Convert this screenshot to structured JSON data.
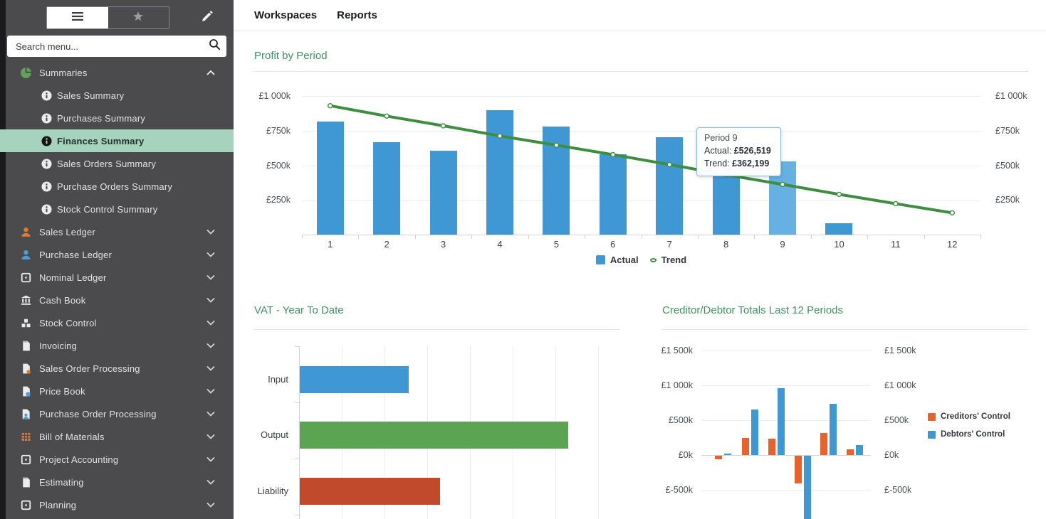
{
  "sidebar": {
    "search_placeholder": "Search menu...",
    "toggle": {
      "active": "menu",
      "icons": [
        "hamburger-icon",
        "star-icon"
      ]
    },
    "items": [
      {
        "label": "Summaries",
        "icon": "pie",
        "expanded": true,
        "children": [
          {
            "label": "Sales Summary"
          },
          {
            "label": "Purchases Summary"
          },
          {
            "label": "Finances Summary",
            "selected": true
          },
          {
            "label": "Sales Orders Summary"
          },
          {
            "label": "Purchase Orders Summary"
          },
          {
            "label": "Stock Control Summary"
          }
        ]
      },
      {
        "label": "Sales Ledger",
        "icon": "person-orange"
      },
      {
        "label": "Purchase Ledger",
        "icon": "person-blue"
      },
      {
        "label": "Nominal Ledger",
        "icon": "square-dot"
      },
      {
        "label": "Cash Book",
        "icon": "bank"
      },
      {
        "label": "Stock Control",
        "icon": "boxes"
      },
      {
        "label": "Invoicing",
        "icon": "doc"
      },
      {
        "label": "Sales Order Processing",
        "icon": "doc-orange"
      },
      {
        "label": "Price Book",
        "icon": "doc-blue"
      },
      {
        "label": "Purchase Order Processing",
        "icon": "doc-person"
      },
      {
        "label": "Bill of Materials",
        "icon": "table-orange"
      },
      {
        "label": "Project Accounting",
        "icon": "square-dot"
      },
      {
        "label": "Estimating",
        "icon": "doc"
      },
      {
        "label": "Planning",
        "icon": "square-dot"
      }
    ]
  },
  "header": {
    "tabs": [
      "Workspaces",
      "Reports"
    ]
  },
  "colors": {
    "accent_green": "#3f9161",
    "trend_green": "#3e8e41",
    "bar_blue": "#3f98d4",
    "bar_blue_highlight": "#66b0e2",
    "vat_green": "#5ba452",
    "liability_red": "#c14a2c",
    "creditors_orange": "#e8632c",
    "selected_menu_bg": "#a5d3be",
    "sidebar_bg": "#4b4b4e"
  },
  "chart_data": [
    {
      "type": "bar",
      "title": "Profit by Period",
      "categories": [
        "1",
        "2",
        "3",
        "4",
        "5",
        "6",
        "7",
        "8",
        "9",
        "10",
        "11",
        "12"
      ],
      "series": [
        {
          "name": "Actual",
          "type": "bar",
          "color": "#3f98d4",
          "values": [
            815000,
            665000,
            605000,
            895000,
            780000,
            580000,
            705000,
            450000,
            526519,
            80000,
            0,
            0
          ]
        },
        {
          "name": "Trend",
          "type": "line",
          "color": "#3e8e41",
          "values": [
            930000,
            855000,
            785000,
            712000,
            645000,
            577000,
            505000,
            432000,
            362199,
            290000,
            223000,
            157000
          ]
        }
      ],
      "ylim": [
        0,
        1000000
      ],
      "yticks": [
        "£1 000k",
        "£750k",
        "£500k",
        "£250k"
      ],
      "ytick_values": [
        1000000,
        750000,
        500000,
        250000
      ],
      "dual_axis": true,
      "grid": true,
      "legend_position": "bottom",
      "highlighted_index": 8,
      "tooltip": {
        "title": "Period 9",
        "rows": [
          [
            "Actual:",
            "£526,519"
          ],
          [
            "Trend:",
            "£362,199"
          ]
        ]
      }
    },
    {
      "type": "bar",
      "orientation": "horizontal",
      "title": "VAT - Year To Date",
      "categories": [
        "Input",
        "Output",
        "Liability"
      ],
      "values_fraction_of_axis": [
        0.35,
        0.86,
        0.45
      ],
      "colors": [
        "#3f98d4",
        "#5ba452",
        "#c14a2c"
      ],
      "x_axis_labels_visible": false,
      "grid": true
    },
    {
      "type": "bar",
      "title": "Creditor/Debtor Totals Last 12 Periods",
      "series": [
        {
          "name": "Creditors' Control",
          "color": "#e8632c",
          "values": [
            -55000,
            250000,
            230000,
            -400000,
            315000,
            85000
          ]
        },
        {
          "name": "Debtors' Control",
          "color": "#3f98d4",
          "values": [
            20000,
            655000,
            960000,
            -950000,
            735000,
            145000
          ]
        }
      ],
      "yticks": [
        "£1 500k",
        "£1 000k",
        "£500k",
        "£0k",
        "£-500k"
      ],
      "ytick_values": [
        1500000,
        1000000,
        500000,
        0,
        -500000
      ],
      "dual_axis": true,
      "grid": true,
      "legend_position": "right"
    }
  ]
}
